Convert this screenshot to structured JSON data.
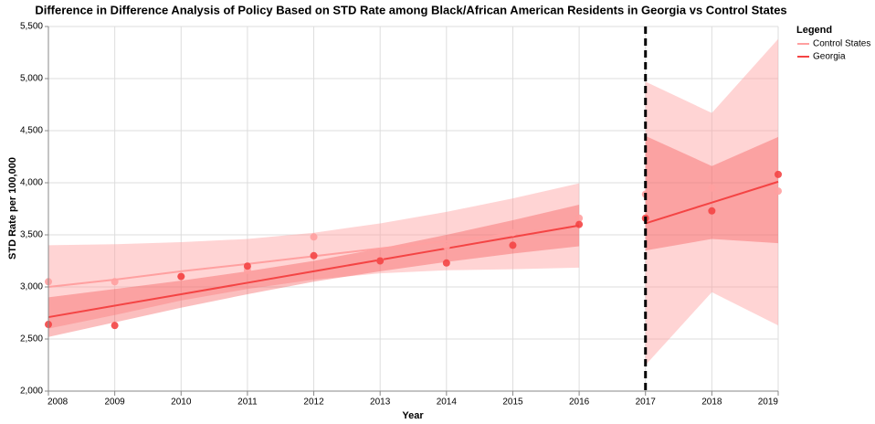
{
  "chart_data": {
    "type": "line",
    "title": "Difference in Difference Analysis of Policy Based on STD Rate among Black/African American Residents in Georgia vs Control States",
    "x_label": "Year",
    "y_label": "STD Rate per 100,000",
    "legend_title": "Legend",
    "legend_position": "right",
    "x": [
      2008,
      2009,
      2010,
      2011,
      2012,
      2013,
      2014,
      2015,
      2016,
      2017,
      2018,
      2019
    ],
    "xlim": [
      2008,
      2019
    ],
    "xticks": [
      2008,
      2009,
      2010,
      2011,
      2012,
      2013,
      2014,
      2015,
      2016,
      2017,
      2018,
      2019
    ],
    "ylim": [
      2000,
      5500
    ],
    "yticks": [
      {
        "value": 2000,
        "label": "2,000"
      },
      {
        "value": 2500,
        "label": "2,500"
      },
      {
        "value": 3000,
        "label": "3,000"
      },
      {
        "value": 3500,
        "label": "3,500"
      },
      {
        "value": 4000,
        "label": "4,000"
      },
      {
        "value": 4500,
        "label": "4,500"
      },
      {
        "value": 5000,
        "label": "5,000"
      },
      {
        "value": 5500,
        "label": "5,500"
      }
    ],
    "grid": true,
    "intervention_x": 2017,
    "pre_x": [
      2008,
      2009,
      2010,
      2011,
      2012,
      2013,
      2014,
      2015,
      2016
    ],
    "post_x": [
      2017,
      2018,
      2019
    ],
    "series": [
      {
        "name": "Control States",
        "color": "#ffa0a0",
        "values": [
          3050,
          3050,
          3100,
          3160,
          3480,
          3260,
          3390,
          3520,
          3660,
          3890,
          3950,
          3920
        ],
        "fit_pre": [
          3000,
          3070,
          3150,
          3220,
          3295,
          3370,
          3440,
          3510,
          3590
        ],
        "band_pre_lower": [
          2600,
          2730,
          2870,
          2980,
          3070,
          3130,
          3160,
          3170,
          3185
        ],
        "band_pre_upper": [
          3400,
          3410,
          3430,
          3460,
          3520,
          3610,
          3720,
          3850,
          3995
        ],
        "fit_post": [
          3610,
          3810,
          4005
        ],
        "band_post_lower": [
          2250,
          2950,
          2630
        ],
        "band_post_upper": [
          4970,
          4670,
          5380
        ]
      },
      {
        "name": "Georgia",
        "color": "#f44444",
        "values": [
          2640,
          2630,
          3100,
          3200,
          3300,
          3250,
          3230,
          3400,
          3600,
          3660,
          3730,
          4080
        ],
        "fit_pre": [
          2710,
          2820,
          2930,
          3040,
          3150,
          3260,
          3370,
          3480,
          3590
        ],
        "band_pre_lower": [
          2520,
          2660,
          2800,
          2930,
          3050,
          3150,
          3240,
          3320,
          3390
        ],
        "band_pre_upper": [
          2900,
          2980,
          3060,
          3150,
          3250,
          3370,
          3500,
          3640,
          3790
        ],
        "fit_post": [
          3610,
          3810,
          4010
        ],
        "band_post_lower": [
          3350,
          3460,
          3420
        ],
        "band_post_upper": [
          4450,
          4160,
          4440
        ]
      }
    ]
  }
}
